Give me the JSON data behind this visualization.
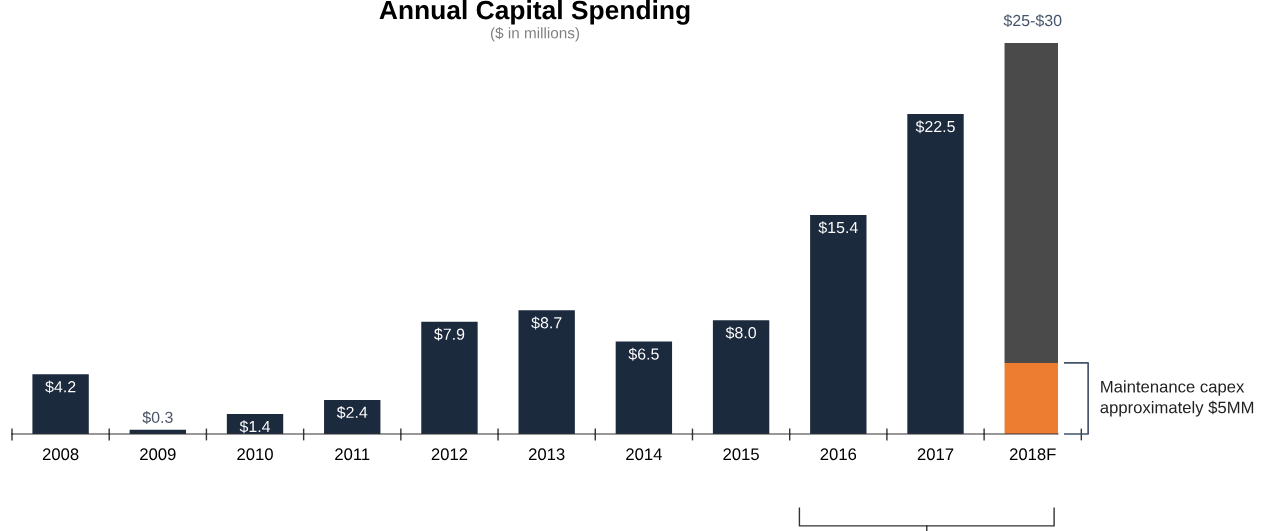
{
  "chart_data": {
    "type": "bar",
    "title": "Annual Capital Spending",
    "subtitle": "($ in millions)",
    "categories": [
      "2008",
      "2009",
      "2010",
      "2011",
      "2012",
      "2013",
      "2014",
      "2015",
      "2016",
      "2017",
      "2018F"
    ],
    "stacked": true,
    "series": [
      {
        "color": "#1c2a3e",
        "values": [
          4.2,
          0.3,
          1.4,
          2.4,
          7.9,
          8.7,
          6.5,
          8.0,
          15.4,
          22.5,
          null
        ],
        "value_labels": [
          "$4.2",
          "$0.3",
          "$1.4",
          "$2.4",
          "$7.9",
          "$8.7",
          "$6.5",
          "$8.0",
          "$15.4",
          "$22.5",
          null
        ]
      },
      {
        "color": "#ed7d31",
        "values": [
          null,
          null,
          null,
          null,
          null,
          null,
          null,
          null,
          null,
          null,
          5
        ]
      },
      {
        "color": "#4a4a4a",
        "values": [
          null,
          null,
          null,
          null,
          null,
          null,
          null,
          null,
          null,
          null,
          22.5
        ]
      }
    ],
    "totals": [
      null,
      null,
      null,
      null,
      null,
      null,
      null,
      null,
      null,
      null,
      "$25-$30"
    ],
    "annotations": [
      "Maintenance capex\napproximately $5MM"
    ],
    "grid": false
  }
}
